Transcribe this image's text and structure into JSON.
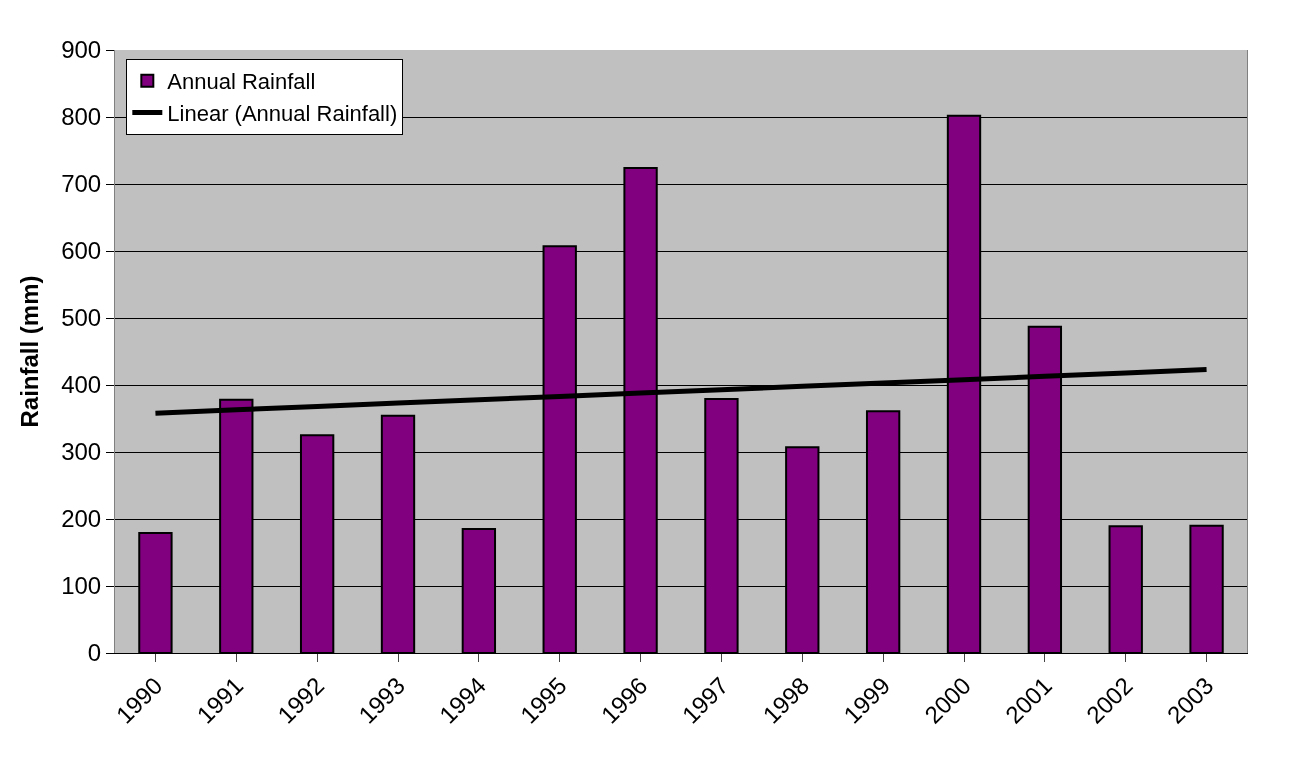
{
  "chart_data": {
    "type": "bar",
    "ylabel": "Rainfall (mm)",
    "categories": [
      "1990",
      "1991",
      "1992",
      "1993",
      "1994",
      "1995",
      "1996",
      "1997",
      "1998",
      "1999",
      "2000",
      "2001",
      "2002",
      "2003"
    ],
    "series": [
      {
        "name": "Annual Rainfall",
        "color": "#800080",
        "values": [
          179,
          378,
          325,
          354,
          185,
          607,
          724,
          379,
          307,
          361,
          802,
          487,
          189,
          190
        ]
      },
      {
        "name": "Linear (Annual Rainfall)",
        "type": "line",
        "color": "#000000",
        "values": [
          358,
          363,
          368,
          373,
          378,
          383,
          388,
          393,
          398,
          403,
          408,
          413,
          418,
          423
        ]
      }
    ],
    "ylim": [
      0,
      900
    ],
    "yticks": [
      0,
      100,
      200,
      300,
      400,
      500,
      600,
      700,
      800,
      900
    ],
    "grid": "y",
    "legend": "top left",
    "marker": "none",
    "line_style": "solid"
  }
}
